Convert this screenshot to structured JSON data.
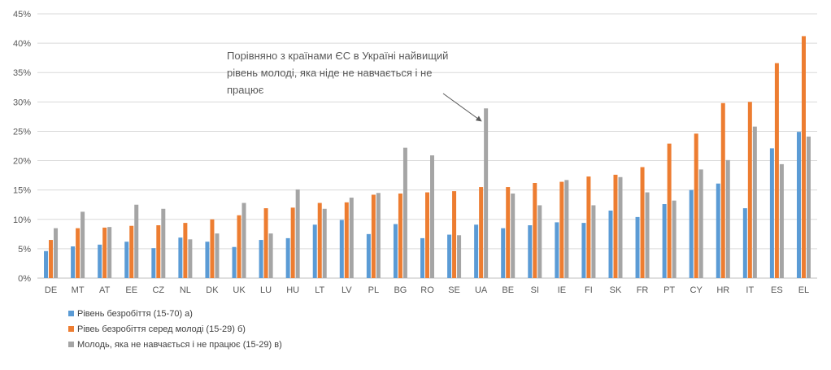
{
  "chart_data": {
    "type": "bar",
    "categories": [
      "DE",
      "MT",
      "AT",
      "EE",
      "CZ",
      "NL",
      "DK",
      "UK",
      "LU",
      "HU",
      "LT",
      "LV",
      "PL",
      "BG",
      "RO",
      "SE",
      "UA",
      "BE",
      "SI",
      "IE",
      "FI",
      "SK",
      "FR",
      "PT",
      "CY",
      "HR",
      "IT",
      "ES",
      "EL"
    ],
    "series": [
      {
        "name": "Рівень безробіття (15-70) а)",
        "color": "#5B9BD5",
        "values": [
          4.6,
          5.4,
          5.7,
          6.2,
          5.1,
          6.9,
          6.2,
          5.3,
          6.5,
          6.8,
          9.1,
          9.9,
          7.5,
          9.2,
          6.8,
          7.4,
          9.1,
          8.5,
          9.0,
          9.5,
          9.4,
          11.5,
          10.4,
          12.6,
          15.0,
          16.1,
          11.9,
          22.1,
          24.9
        ]
      },
      {
        "name": "Рівеь безробіття серед молоді (15-29) б)",
        "color": "#ED7D31",
        "values": [
          6.5,
          8.5,
          8.6,
          8.9,
          9.0,
          9.4,
          10.0,
          10.7,
          11.9,
          12.0,
          12.8,
          12.9,
          14.2,
          14.4,
          14.6,
          14.8,
          15.5,
          15.5,
          16.2,
          16.4,
          17.3,
          17.6,
          18.9,
          22.9,
          24.6,
          29.8,
          30.0,
          36.6,
          41.2
        ]
      },
      {
        "name": "Молодь, яка не навчається і не працює (15-29) в)",
        "color": "#A5A5A5",
        "values": [
          8.5,
          11.3,
          8.7,
          12.5,
          11.8,
          6.6,
          7.6,
          12.8,
          7.6,
          15.1,
          11.8,
          13.7,
          14.5,
          22.2,
          20.9,
          7.3,
          28.9,
          14.4,
          12.4,
          16.7,
          12.4,
          17.2,
          14.6,
          13.2,
          18.5,
          20.1,
          25.8,
          19.4,
          24.1
        ]
      }
    ],
    "y_ticks": [
      "0%",
      "5%",
      "10%",
      "15%",
      "20%",
      "25%",
      "30%",
      "35%",
      "40%",
      "45%"
    ],
    "ylim": [
      0,
      45
    ],
    "grid": true,
    "legend_position": "bottom-left",
    "annotation": {
      "lines": [
        "Порівняно з країнами ЄС в Україні найвищий",
        "рівень молоді, яка ніде не навчається і не",
        "працює"
      ],
      "target_category": "UA"
    }
  }
}
